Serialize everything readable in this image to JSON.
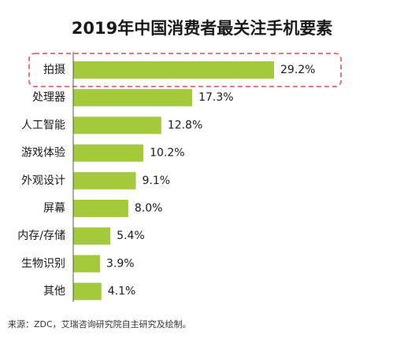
{
  "chart_data": {
    "type": "bar",
    "orientation": "horizontal",
    "title": "2019年中国消费者最关注手机要素",
    "categories": [
      "拍摄",
      "处理器",
      "人工智能",
      "游戏体验",
      "外观设计",
      "屏幕",
      "内存/存储",
      "生物识别",
      "其他"
    ],
    "values": [
      29.2,
      17.3,
      12.8,
      10.2,
      9.1,
      8.0,
      5.4,
      3.9,
      4.1
    ],
    "value_labels": [
      "29.2%",
      "17.3%",
      "12.8%",
      "10.2%",
      "9.1%",
      "8.0%",
      "5.4%",
      "3.9%",
      "4.1%"
    ],
    "xlim": [
      0,
      30
    ],
    "grid": false,
    "highlighted_category": "拍摄",
    "colors": {
      "bar": "#a5c93c",
      "axis": "#555555",
      "highlight": "#e07a7a"
    }
  },
  "source": "来源：ZDC，艾瑞咨询研究院自主研究及绘制。"
}
